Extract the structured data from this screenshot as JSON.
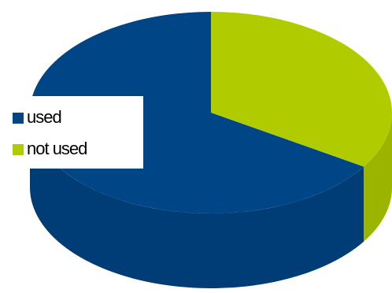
{
  "chart_data": {
    "type": "pie",
    "categories": [
      "used",
      "not used"
    ],
    "values": [
      66,
      34
    ],
    "colors": [
      "#004586",
      "#b0cc00"
    ],
    "legend": "left"
  }
}
